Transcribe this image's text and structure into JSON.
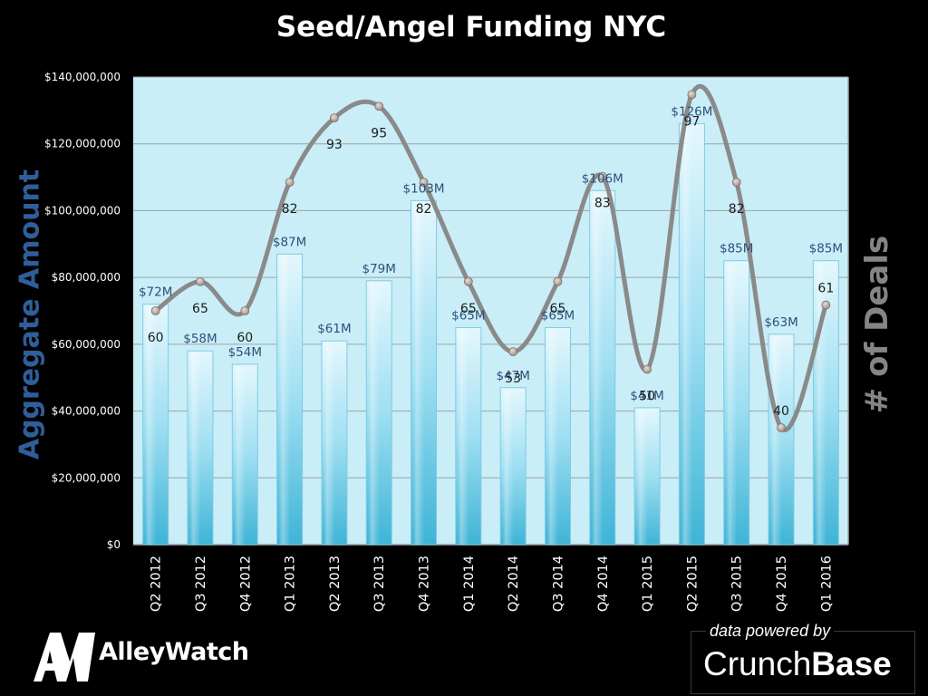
{
  "title": "Seed/Angel Funding NYC",
  "left_axis_title": "Aggregate  Amount",
  "right_axis_title": "# of Deals",
  "logo": {
    "mark": "AW",
    "name": "AlleyWatch"
  },
  "powered_by": {
    "label": "data powered by",
    "brand_part1": "Crunch",
    "brand_part2": "Base"
  },
  "colors": {
    "background": "#000000",
    "plot_background": "#c9eef8",
    "bar_top": "#e4f7fd",
    "bar_bottom": "#3fb4d6",
    "line": "#8a8a8a",
    "marker": "#b7a39b",
    "bar_label": "#2f4f7a",
    "axis_title_left": "#2f5e9a",
    "axis_title_right": "#858585"
  },
  "chart_data": {
    "type": "bar",
    "title": "Seed/Angel Funding NYC",
    "ylabel": "Aggregate  Amount",
    "y2label": "# of Deals",
    "ylim": [
      0,
      140000000
    ],
    "y_ticks": [
      "$0",
      "$20,000,000",
      "$40,000,000",
      "$60,000,000",
      "$80,000,000",
      "$100,000,000",
      "$120,000,000",
      "$140,000,000"
    ],
    "y_tick_values": [
      0,
      20000000,
      40000000,
      60000000,
      80000000,
      100000000,
      120000000,
      140000000
    ],
    "grid": true,
    "categories": [
      "Q2 2012",
      "Q3 2012",
      "Q4 2012",
      "Q1 2013",
      "Q2 2013",
      "Q3 2013",
      "Q4 2013",
      "Q1 2014",
      "Q2 2014",
      "Q3 2014",
      "Q4 2014",
      "Q1 2015",
      "Q2 2015",
      "Q3 2015",
      "Q4 2015",
      "Q1 2016"
    ],
    "series": [
      {
        "type": "bar",
        "axis": "left",
        "values": [
          72000000,
          58000000,
          54000000,
          87000000,
          61000000,
          79000000,
          103000000,
          65000000,
          47000000,
          65000000,
          106000000,
          41000000,
          126000000,
          85000000,
          63000000,
          85000000
        ],
        "labels": [
          "$72M",
          "$58M",
          "$54M",
          "$87M",
          "$61M",
          "$79M",
          "$103M",
          "$65M",
          "$47M",
          "$65M",
          "$106M",
          "$41M",
          "$126M",
          "$85M",
          "$63M",
          "$85M"
        ]
      },
      {
        "type": "line",
        "axis": "right",
        "smooth": true,
        "values": [
          60,
          65,
          60,
          82,
          93,
          95,
          82,
          65,
          53,
          65,
          83,
          50,
          97,
          82,
          40,
          61
        ],
        "labels": [
          "60",
          "65",
          "60",
          "82",
          "93",
          "95",
          "82",
          "65",
          "53",
          "65",
          "83",
          "50",
          "97",
          "82",
          "40",
          "61"
        ]
      }
    ]
  }
}
